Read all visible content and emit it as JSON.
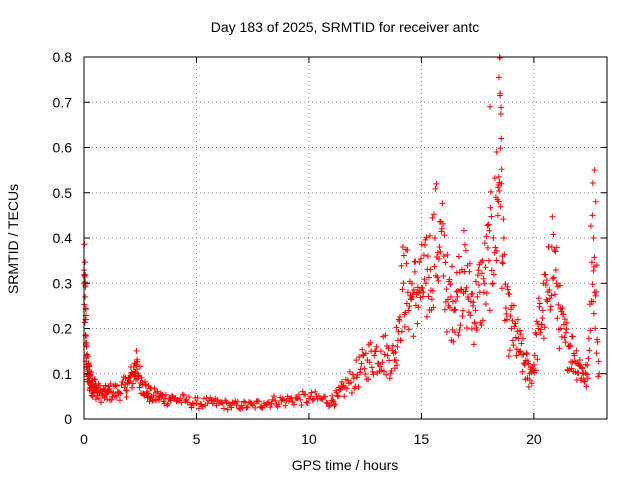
{
  "chart_data": {
    "type": "scatter",
    "title": "Day 183 of 2025, SRMTID for receiver antc",
    "xlabel": "GPS time / hours",
    "ylabel": "SRMTID / TECUs",
    "xlim": [
      0,
      23.25
    ],
    "ylim": [
      0,
      0.8
    ],
    "xticks": [
      0,
      5,
      10,
      15,
      20
    ],
    "yticks": [
      0,
      0.1,
      0.2,
      0.3,
      0.4,
      0.5,
      0.6,
      0.7,
      0.8
    ],
    "xtick_labels": [
      "0",
      "5",
      "10",
      "15",
      "20"
    ],
    "ytick_labels": [
      "0",
      "0.1",
      "0.2",
      "0.3",
      "0.4",
      "0.5",
      "0.6",
      "0.7",
      "0.8"
    ],
    "grid": true,
    "marker": "+",
    "color": "#ff0000",
    "series": [
      {
        "name": "SRMTID",
        "x": [
          0.0,
          0.05,
          0.08,
          0.1,
          0.15,
          0.2,
          0.25,
          0.3,
          0.4,
          0.5,
          0.6,
          0.8,
          1.0,
          1.2,
          1.5,
          1.8,
          2.0,
          2.2,
          2.3,
          2.4,
          2.6,
          2.8,
          3.0,
          3.3,
          3.6,
          4.0,
          4.5,
          5.0,
          5.5,
          6.0,
          6.5,
          7.0,
          7.5,
          8.0,
          8.5,
          9.0,
          9.5,
          10.0,
          10.5,
          11.0,
          11.3,
          11.6,
          12.0,
          12.3,
          12.6,
          12.9,
          13.2,
          13.5,
          13.8,
          14.0,
          14.2,
          14.4,
          14.6,
          14.8,
          15.0,
          15.2,
          15.4,
          15.6,
          15.8,
          16.0,
          16.2,
          16.4,
          16.6,
          16.8,
          17.0,
          17.2,
          17.4,
          17.6,
          17.8,
          18.0,
          18.2,
          18.4,
          18.5,
          18.6,
          18.8,
          19.0,
          19.2,
          19.4,
          19.6,
          19.8,
          20.0,
          20.2,
          20.4,
          20.6,
          20.8,
          21.0,
          21.2,
          21.4,
          21.6,
          21.8,
          22.0,
          22.2,
          22.4,
          22.6,
          22.7,
          22.9
        ],
        "y": [
          0.3,
          0.27,
          0.22,
          0.14,
          0.11,
          0.1,
          0.09,
          0.08,
          0.075,
          0.07,
          0.06,
          0.055,
          0.055,
          0.06,
          0.06,
          0.07,
          0.08,
          0.1,
          0.12,
          0.1,
          0.08,
          0.06,
          0.05,
          0.05,
          0.045,
          0.045,
          0.04,
          0.035,
          0.035,
          0.035,
          0.03,
          0.03,
          0.03,
          0.035,
          0.04,
          0.04,
          0.045,
          0.045,
          0.045,
          0.04,
          0.05,
          0.07,
          0.09,
          0.11,
          0.13,
          0.14,
          0.15,
          0.14,
          0.13,
          0.22,
          0.3,
          0.28,
          0.27,
          0.28,
          0.29,
          0.3,
          0.33,
          0.4,
          0.38,
          0.36,
          0.25,
          0.26,
          0.27,
          0.33,
          0.29,
          0.26,
          0.24,
          0.28,
          0.3,
          0.35,
          0.4,
          0.45,
          0.72,
          0.36,
          0.22,
          0.2,
          0.18,
          0.15,
          0.12,
          0.1,
          0.12,
          0.2,
          0.24,
          0.26,
          0.38,
          0.3,
          0.2,
          0.17,
          0.16,
          0.14,
          0.12,
          0.1,
          0.09,
          0.45,
          0.28,
          0.1
        ]
      }
    ],
    "outliers": {
      "x": [
        18.05,
        18.35,
        18.45,
        18.5,
        18.55,
        22.7,
        22.75,
        22.8
      ],
      "y": [
        0.69,
        0.59,
        0.755,
        0.715,
        0.62,
        0.55,
        0.48,
        0.34
      ]
    }
  }
}
